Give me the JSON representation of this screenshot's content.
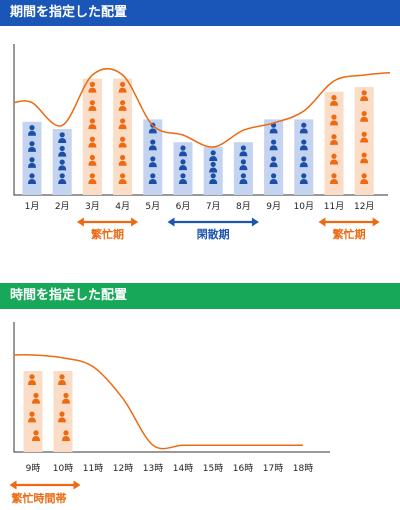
{
  "colors": {
    "blue_header": "#1a55b8",
    "green_header": "#18a85a",
    "orange": "#ee6a12",
    "orange_fill": "#fbdcc6",
    "blue_fill": "#c4d3ef",
    "blue_icon": "#1a4fa8",
    "blue_arrow": "#1f56ad",
    "axis": "#333333"
  },
  "chart_data": [
    {
      "type": "bar",
      "title": "期間を指定した配置",
      "categories": [
        "1月",
        "2月",
        "3月",
        "4月",
        "5月",
        "6月",
        "7月",
        "8月",
        "9月",
        "10月",
        "11月",
        "12月"
      ],
      "series": [
        {
          "values": [
            4,
            4,
            6,
            6,
            4,
            3,
            3,
            3,
            4,
            4,
            5,
            5
          ],
          "busy": [
            false,
            false,
            true,
            true,
            false,
            false,
            false,
            false,
            false,
            false,
            true,
            true
          ]
        }
      ],
      "bar_height_ratio": [
        0.61,
        0.55,
        0.97,
        0.97,
        0.63,
        0.44,
        0.4,
        0.44,
        0.63,
        0.63,
        0.86,
        0.9
      ],
      "demand_curve_level": [
        0.77,
        0.58,
        1.0,
        1.0,
        0.58,
        0.5,
        0.4,
        0.54,
        0.6,
        0.7,
        0.95,
        1.0
      ],
      "annotations": [
        {
          "label": "繁忙期",
          "from": "3月",
          "to": "4月",
          "kind": "busy"
        },
        {
          "label": "閑散期",
          "from": "6月",
          "to": "8月",
          "kind": "quiet"
        },
        {
          "label": "繁忙期",
          "from": "11月",
          "to": "12月",
          "kind": "busy"
        }
      ]
    },
    {
      "type": "bar",
      "title": "時間を指定した配置",
      "categories": [
        "9時",
        "10時",
        "11時",
        "12時",
        "13時",
        "14時",
        "15時",
        "16時",
        "17時",
        "18時"
      ],
      "series": [
        {
          "values": [
            4,
            4,
            0,
            0,
            0,
            0,
            0,
            0,
            0,
            0
          ],
          "busy": [
            true,
            true,
            false,
            false,
            false,
            false,
            false,
            false,
            false,
            false
          ]
        }
      ],
      "demand_curve_level": [
        1.0,
        0.97,
        0.88,
        0.55,
        0.07,
        0.07,
        0.07,
        0.07,
        0.07,
        0.07
      ],
      "annotations": [
        {
          "label": "繁忙時間帯",
          "from": "9時",
          "to": "10時",
          "kind": "busy"
        }
      ]
    }
  ]
}
